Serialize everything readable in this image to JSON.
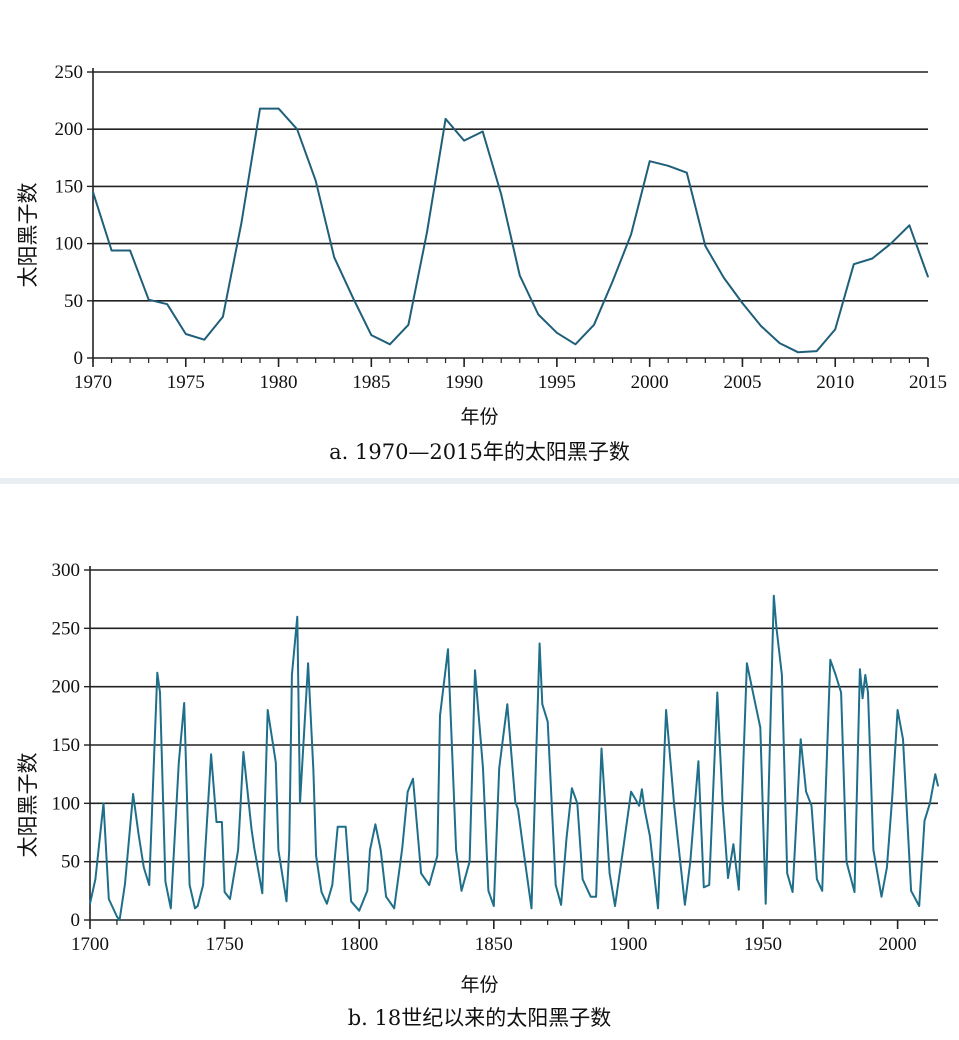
{
  "chart_data": [
    {
      "type": "line",
      "title": "a. 1970—2015年的太阳黑子数",
      "xlabel": "年份",
      "ylabel": "太阳黑子数",
      "xlim": [
        1970,
        2015
      ],
      "ylim": [
        0,
        250
      ],
      "xticks": [
        1970,
        1975,
        1980,
        1985,
        1990,
        1995,
        2000,
        2005,
        2010,
        2015
      ],
      "yticks": [
        0,
        50,
        100,
        150,
        200,
        250
      ],
      "grid": "horizontal",
      "color": "#1f5f7a",
      "series": [
        {
          "name": "太阳黑子数",
          "x": [
            1970,
            1971,
            1972,
            1973,
            1974,
            1975,
            1976,
            1977,
            1978,
            1979,
            1980,
            1981,
            1982,
            1983,
            1984,
            1985,
            1986,
            1987,
            1988,
            1989,
            1990,
            1991,
            1992,
            1993,
            1994,
            1995,
            1996,
            1997,
            1998,
            1999,
            2000,
            2001,
            2002,
            2003,
            2004,
            2005,
            2006,
            2007,
            2008,
            2009,
            2010,
            2011,
            2012,
            2013,
            2014,
            2015
          ],
          "y": [
            145,
            94,
            94,
            51,
            47,
            21,
            16,
            36,
            118,
            218,
            218,
            200,
            155,
            88,
            53,
            20,
            12,
            29,
            110,
            209,
            190,
            198,
            143,
            72,
            38,
            22,
            12,
            29,
            67,
            108,
            172,
            168,
            162,
            98,
            70,
            48,
            28,
            13,
            5,
            6,
            25,
            82,
            87,
            100,
            116,
            71
          ]
        }
      ]
    },
    {
      "type": "line",
      "title": "b. 18世纪以来的太阳黑子数",
      "xlabel": "年份",
      "ylabel": "太阳黑子数",
      "xlim": [
        1700,
        2015
      ],
      "ylim": [
        0,
        300
      ],
      "xticks": [
        1700,
        1750,
        1800,
        1850,
        1900,
        1950,
        2000
      ],
      "yticks": [
        0,
        50,
        100,
        150,
        200,
        250,
        300
      ],
      "grid": "horizontal",
      "color": "#1f6f8a",
      "series": [
        {
          "name": "太阳黑子数",
          "x": [
            1700,
            1702,
            1705,
            1707,
            1710,
            1711,
            1713,
            1716,
            1718,
            1720,
            1722,
            1725,
            1726,
            1728,
            1730,
            1733,
            1735,
            1737,
            1739,
            1740,
            1742,
            1745,
            1747,
            1749,
            1750,
            1752,
            1755,
            1757,
            1760,
            1761,
            1764,
            1766,
            1769,
            1770,
            1773,
            1774,
            1775,
            1777,
            1778,
            1781,
            1783,
            1784,
            1786,
            1788,
            1790,
            1792,
            1795,
            1797,
            1800,
            1803,
            1804,
            1806,
            1808,
            1810,
            1813,
            1816,
            1818,
            1820,
            1823,
            1826,
            1829,
            1830,
            1833,
            1836,
            1838,
            1841,
            1843,
            1846,
            1848,
            1850,
            1852,
            1855,
            1858,
            1859,
            1861,
            1864,
            1867,
            1868,
            1870,
            1873,
            1875,
            1877,
            1879,
            1881,
            1883,
            1886,
            1888,
            1890,
            1893,
            1895,
            1898,
            1901,
            1904,
            1905,
            1906,
            1908,
            1911,
            1914,
            1917,
            1919,
            1921,
            1923,
            1926,
            1928,
            1930,
            1933,
            1935,
            1937,
            1939,
            1941,
            1944,
            1947,
            1949,
            1951,
            1954,
            1955,
            1957,
            1959,
            1961,
            1964,
            1966,
            1968,
            1970,
            1972,
            1975,
            1977,
            1979,
            1981,
            1984,
            1986,
            1987,
            1988,
            1989,
            1991,
            1994,
            1996,
            1998,
            2000,
            2002,
            2005,
            2008,
            2010,
            2012,
            2014,
            2015
          ],
          "y": [
            14,
            35,
            100,
            18,
            3,
            0,
            31,
            108,
            74,
            45,
            30,
            212,
            195,
            33,
            10,
            135,
            186,
            30,
            10,
            12,
            30,
            142,
            84,
            84,
            24,
            18,
            60,
            144,
            78,
            62,
            23,
            180,
            135,
            60,
            16,
            60,
            210,
            260,
            100,
            220,
            128,
            55,
            24,
            14,
            30,
            80,
            80,
            16,
            8,
            25,
            60,
            82,
            60,
            20,
            10,
            62,
            110,
            121,
            40,
            30,
            55,
            175,
            232,
            60,
            25,
            50,
            214,
            130,
            25,
            12,
            130,
            185,
            101,
            95,
            60,
            10,
            237,
            185,
            170,
            30,
            13,
            70,
            113,
            100,
            35,
            20,
            20,
            147,
            40,
            12,
            60,
            110,
            98,
            112,
            95,
            72,
            10,
            180,
            98,
            55,
            13,
            50,
            136,
            28,
            30,
            195,
            100,
            36,
            65,
            26,
            220,
            187,
            165,
            14,
            278,
            250,
            210,
            40,
            24,
            155,
            110,
            98,
            35,
            25,
            223,
            210,
            195,
            50,
            24,
            215,
            190,
            210,
            195,
            60,
            20,
            45,
            105,
            180,
            155,
            25,
            12,
            85,
            100,
            125,
            115
          ]
        }
      ]
    }
  ],
  "figure_a": {
    "caption": "a. 1970—2015年的太阳黑子数",
    "xlabel": "年份",
    "ylabel": "太阳黑子数"
  },
  "figure_b": {
    "caption": "b. 18世纪以来的太阳黑子数",
    "xlabel": "年份",
    "ylabel": "太阳黑子数"
  }
}
